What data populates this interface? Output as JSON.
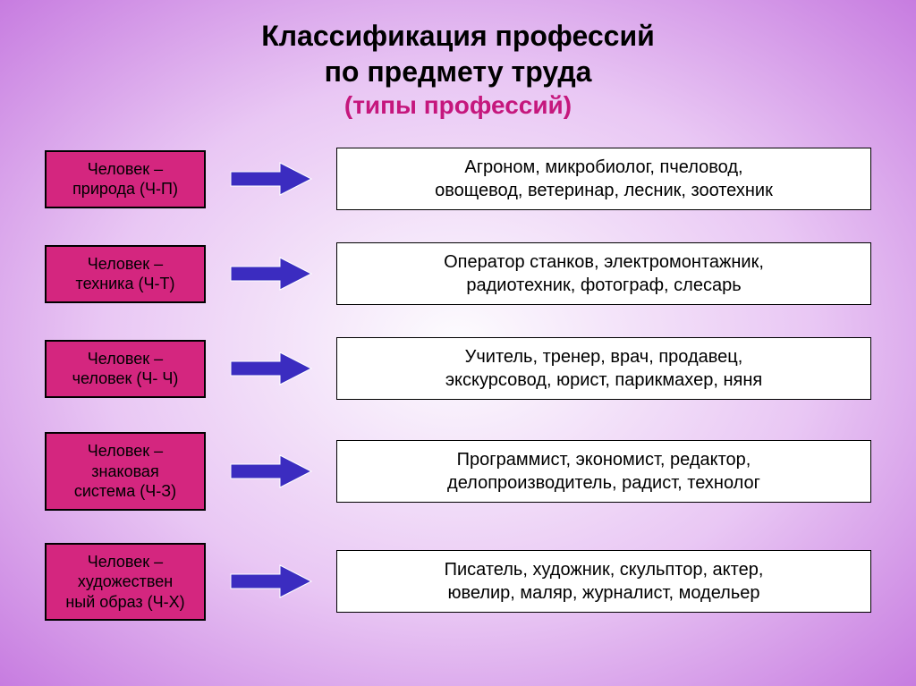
{
  "background": {
    "gradient_center": "#fdfcfe",
    "gradient_mid": "#e9c7f4",
    "gradient_edge": "#c77ce0"
  },
  "title": {
    "line1": "Классификация профессий",
    "line2": "по предмету труда",
    "line3": "(типы профессий)",
    "color_main": "#000000",
    "color_sub": "#c5177d",
    "fontsize_main": 32,
    "fontsize_sub": 28
  },
  "category_style": {
    "bg": "#d4267f",
    "border": "#000000",
    "text_color": "#000000",
    "fontsize": 18
  },
  "arrow_style": {
    "fill": "#3b2cc0",
    "stroke": "#ffffff"
  },
  "examples_style": {
    "bg": "#ffffff",
    "border": "#000000",
    "text_color": "#000000",
    "fontsize": 20
  },
  "rows": [
    {
      "category_line1": "Человек –",
      "category_line2": "природа (Ч-П)",
      "examples_line1": "Агроном, микробиолог, пчеловод,",
      "examples_line2": "овощевод, ветеринар, лесник, зоотехник"
    },
    {
      "category_line1": "Человек –",
      "category_line2": "техника (Ч-Т)",
      "examples_line1": "Оператор станков, электромонтажник,",
      "examples_line2": "радиотехник, фотограф, слесарь"
    },
    {
      "category_line1": "Человек –",
      "category_line2": "человек (Ч- Ч)",
      "examples_line1": "Учитель, тренер, врач, продавец,",
      "examples_line2": "экскурсовод, юрист, парикмахер, няня"
    },
    {
      "category_line1": "Человек –",
      "category_line2": "знаковая",
      "category_line3": "система (Ч-З)",
      "examples_line1": "Программист, экономист, редактор,",
      "examples_line2": "делопроизводитель, радист, технолог"
    },
    {
      "category_line1": "Человек –",
      "category_line2": "художествен",
      "category_line3": "ный образ (Ч-Х)",
      "examples_line1": "Писатель, художник, скульптор, актер,",
      "examples_line2": "ювелир, маляр, журналист, модельер"
    }
  ]
}
